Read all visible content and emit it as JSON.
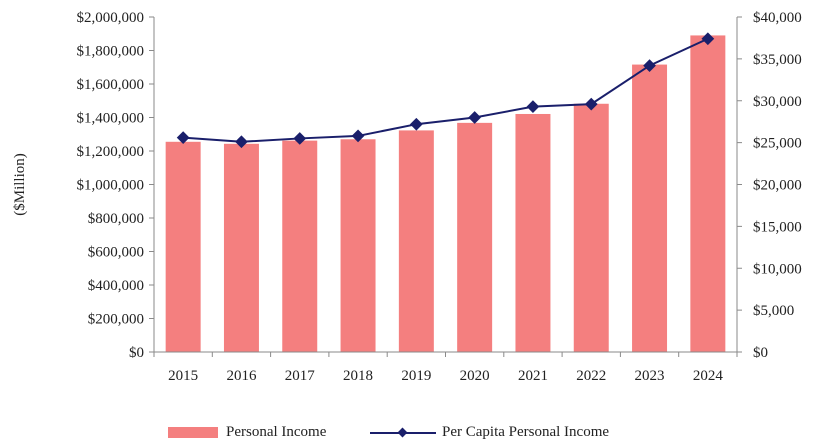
{
  "chart_data": {
    "type": "bar",
    "categories": [
      "2015",
      "2016",
      "2017",
      "2018",
      "2019",
      "2020",
      "2021",
      "2022",
      "2023",
      "2024"
    ],
    "series": [
      {
        "name": "Personal Income",
        "type": "bar",
        "axis": "left",
        "values": [
          1255000,
          1243000,
          1262000,
          1270000,
          1323000,
          1368000,
          1421000,
          1482000,
          1716000,
          1890000
        ]
      },
      {
        "name": "Per Capita Personal Income",
        "type": "line",
        "axis": "right",
        "values": [
          25600,
          25100,
          25500,
          25800,
          27200,
          28000,
          29300,
          29600,
          34200,
          37400
        ]
      }
    ],
    "ylabel": "($Million)",
    "ylim": [
      0,
      2000000
    ],
    "y2lim": [
      0,
      40000
    ],
    "yticks": [
      "$0",
      "$200,000",
      "$400,000",
      "$600,000",
      "$800,000",
      "$1,000,000",
      "$1,200,000",
      "$1,400,000",
      "$1,600,000",
      "$1,800,000",
      "$2,000,000"
    ],
    "y2ticks": [
      "$0",
      "$5,000",
      "$10,000",
      "$15,000",
      "$20,000",
      "$25,000",
      "$30,000",
      "$35,000",
      "$40,000"
    ],
    "grid": false,
    "legend_position": "bottom",
    "colors": {
      "bar": "#f47f7f",
      "line": "#1a1f6b"
    }
  }
}
